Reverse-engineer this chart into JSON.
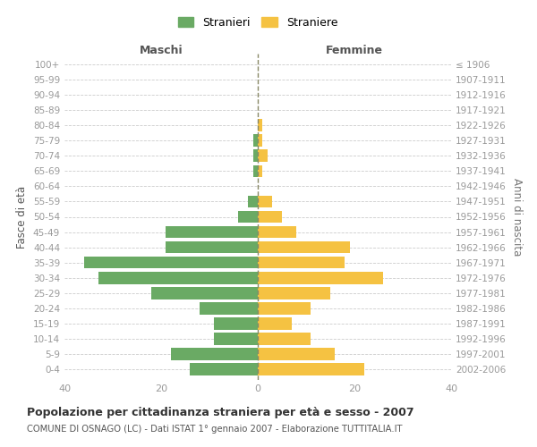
{
  "age_groups": [
    "0-4",
    "5-9",
    "10-14",
    "15-19",
    "20-24",
    "25-29",
    "30-34",
    "35-39",
    "40-44",
    "45-49",
    "50-54",
    "55-59",
    "60-64",
    "65-69",
    "70-74",
    "75-79",
    "80-84",
    "85-89",
    "90-94",
    "95-99",
    "100+"
  ],
  "birth_years": [
    "2002-2006",
    "1997-2001",
    "1992-1996",
    "1987-1991",
    "1982-1986",
    "1977-1981",
    "1972-1976",
    "1967-1971",
    "1962-1966",
    "1957-1961",
    "1952-1956",
    "1947-1951",
    "1942-1946",
    "1937-1941",
    "1932-1936",
    "1927-1931",
    "1922-1926",
    "1917-1921",
    "1912-1916",
    "1907-1911",
    "≤ 1906"
  ],
  "maschi": [
    14,
    18,
    9,
    9,
    12,
    22,
    33,
    36,
    19,
    19,
    4,
    2,
    0,
    1,
    1,
    1,
    0,
    0,
    0,
    0,
    0
  ],
  "femmine": [
    22,
    16,
    11,
    7,
    11,
    15,
    26,
    18,
    19,
    8,
    5,
    3,
    0,
    1,
    2,
    1,
    1,
    0,
    0,
    0,
    0
  ],
  "color_maschi": "#6aaa64",
  "color_femmine": "#f5c242",
  "xlabel_left": "Maschi",
  "xlabel_right": "Femmine",
  "ylabel_left": "Fasce di età",
  "ylabel_right": "Anni di nascita",
  "legend_maschi": "Stranieri",
  "legend_femmine": "Straniere",
  "title": "Popolazione per cittadinanza straniera per età e sesso - 2007",
  "subtitle": "COMUNE DI OSNAGO (LC) - Dati ISTAT 1° gennaio 2007 - Elaborazione TUTTITALIA.IT",
  "xlim": 40,
  "background_color": "#ffffff",
  "grid_color": "#cccccc",
  "tick_color": "#999999",
  "bar_height": 0.8
}
